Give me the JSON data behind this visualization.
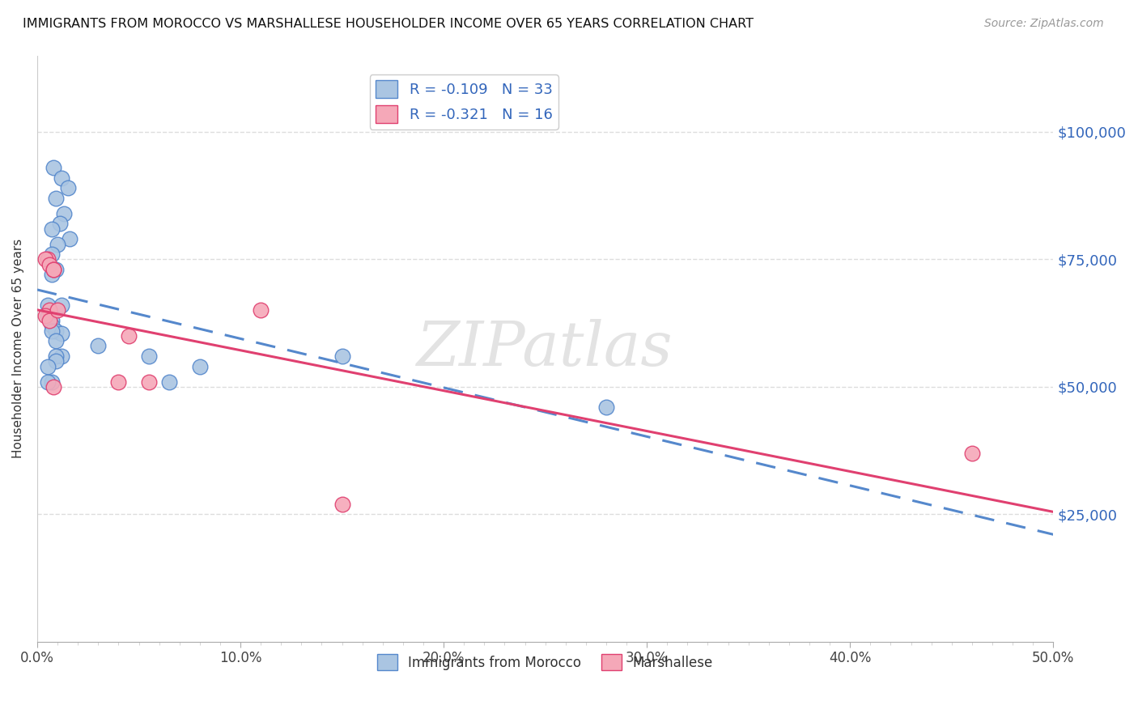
{
  "title": "IMMIGRANTS FROM MOROCCO VS MARSHALLESE HOUSEHOLDER INCOME OVER 65 YEARS CORRELATION CHART",
  "source": "Source: ZipAtlas.com",
  "xlabel_bottom": [
    "0.0%",
    "",
    "",
    "",
    "",
    "",
    "",
    "",
    "",
    "",
    "10.0%",
    "",
    "",
    "",
    "",
    "",
    "",
    "",
    "",
    "",
    "20.0%",
    "",
    "",
    "",
    "",
    "",
    "",
    "",
    "",
    "",
    "30.0%",
    "",
    "",
    "",
    "",
    "",
    "",
    "",
    "",
    "",
    "40.0%",
    "",
    "",
    "",
    "",
    "",
    "",
    "",
    "",
    "",
    "50.0%"
  ],
  "ylabel": "Householder Income Over 65 years",
  "ytick_labels": [
    "$25,000",
    "$50,000",
    "$75,000",
    "$100,000"
  ],
  "ytick_values": [
    25000,
    50000,
    75000,
    100000
  ],
  "xlim": [
    0.0,
    0.5
  ],
  "ylim": [
    0,
    115000
  ],
  "watermark": "ZIPatlas",
  "R1": -0.109,
  "N1": 33,
  "R2": -0.321,
  "N2": 16,
  "legend1_color": "#aac5e2",
  "legend2_color": "#f5a8b8",
  "line1_color": "#5588cc",
  "line2_color": "#e04070",
  "scatter1_color": "#aac5e2",
  "scatter2_color": "#f5a8b8",
  "morocco_x": [
    0.008,
    0.012,
    0.015,
    0.009,
    0.013,
    0.011,
    0.007,
    0.016,
    0.01,
    0.007,
    0.009,
    0.007,
    0.012,
    0.005,
    0.005,
    0.007,
    0.007,
    0.009,
    0.012,
    0.007,
    0.009,
    0.012,
    0.009,
    0.009,
    0.005,
    0.007,
    0.005,
    0.03,
    0.055,
    0.065,
    0.08,
    0.15,
    0.28
  ],
  "morocco_y": [
    93000,
    91000,
    89000,
    87000,
    84000,
    82000,
    81000,
    79000,
    78000,
    76000,
    73000,
    72000,
    66000,
    66000,
    64000,
    63000,
    62000,
    61000,
    60500,
    61000,
    59000,
    56000,
    56000,
    55000,
    54000,
    51000,
    51000,
    58000,
    56000,
    51000,
    54000,
    56000,
    46000
  ],
  "marshallese_x": [
    0.005,
    0.004,
    0.006,
    0.008,
    0.008,
    0.006,
    0.004,
    0.006,
    0.008,
    0.01,
    0.04,
    0.045,
    0.055,
    0.11,
    0.15,
    0.46
  ],
  "marshallese_y": [
    75000,
    75000,
    74000,
    73000,
    73000,
    65000,
    64000,
    63000,
    50000,
    65000,
    51000,
    60000,
    51000,
    65000,
    27000,
    37000
  ],
  "grid_color": "#dddddd",
  "background_color": "#ffffff"
}
